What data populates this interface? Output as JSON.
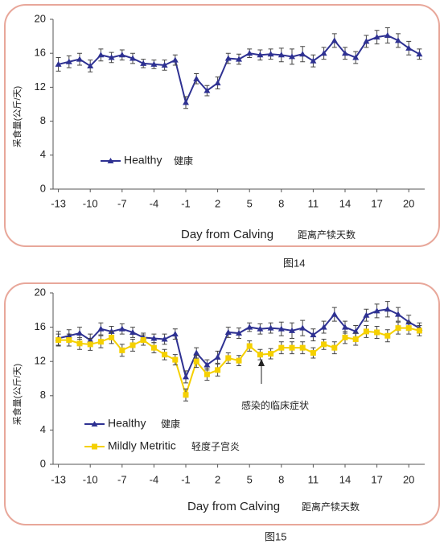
{
  "chart_data": [
    {
      "type": "line",
      "x_label": "Day from Calving",
      "x_label_zh": "距离产犊天数",
      "y_label": "采食量(公斤/天)",
      "x": [
        -13,
        -12,
        -11,
        -10,
        -9,
        -8,
        -7,
        -6,
        -5,
        -4,
        -3,
        -2,
        -1,
        0,
        1,
        2,
        3,
        4,
        5,
        6,
        7,
        8,
        9,
        10,
        11,
        12,
        13,
        14,
        15,
        16,
        17,
        18,
        19,
        20,
        21
      ],
      "xlim": [
        -13.5,
        21.5
      ],
      "xticks": [
        -13,
        -10,
        -7,
        -4,
        -1,
        2,
        5,
        8,
        11,
        14,
        17,
        20
      ],
      "ylim": [
        0,
        20
      ],
      "yticks": [
        0,
        4,
        8,
        12,
        16,
        20
      ],
      "series": [
        {
          "name": "Healthy",
          "name_zh": "健康",
          "color": "#2e3192",
          "marker": "triangle",
          "values": [
            14.7,
            15.0,
            15.3,
            14.5,
            15.8,
            15.5,
            15.8,
            15.4,
            14.8,
            14.7,
            14.6,
            15.2,
            10.2,
            13.0,
            11.6,
            12.5,
            15.4,
            15.3,
            16.0,
            15.8,
            15.9,
            15.8,
            15.6,
            15.9,
            15.1,
            16.0,
            17.5,
            16.0,
            15.5,
            17.4,
            17.9,
            18.1,
            17.5,
            16.6,
            15.9
          ],
          "errors": [
            0.8,
            0.7,
            0.7,
            0.7,
            0.7,
            0.6,
            0.6,
            0.6,
            0.5,
            0.5,
            0.6,
            0.6,
            0.7,
            0.6,
            0.6,
            0.7,
            0.6,
            0.6,
            0.5,
            0.6,
            0.6,
            0.8,
            0.9,
            0.9,
            0.7,
            0.7,
            0.8,
            0.7,
            0.7,
            0.7,
            0.8,
            0.9,
            0.8,
            0.8,
            0.6
          ]
        }
      ]
    },
    {
      "type": "line",
      "x_label": "Day from Calving",
      "x_label_zh": "距离产犊天数",
      "y_label": "采食量(公斤/天)",
      "annotation": "感染的临床症状",
      "x": [
        -13,
        -12,
        -11,
        -10,
        -9,
        -8,
        -7,
        -6,
        -5,
        -4,
        -3,
        -2,
        -1,
        0,
        1,
        2,
        3,
        4,
        5,
        6,
        7,
        8,
        9,
        10,
        11,
        12,
        13,
        14,
        15,
        16,
        17,
        18,
        19,
        20,
        21
      ],
      "xlim": [
        -13.5,
        21.5
      ],
      "xticks": [
        -13,
        -10,
        -7,
        -4,
        -1,
        2,
        5,
        8,
        11,
        14,
        17,
        20
      ],
      "ylim": [
        0,
        20
      ],
      "yticks": [
        0,
        4,
        8,
        12,
        16,
        20
      ],
      "series": [
        {
          "name": "Healthy",
          "name_zh": "健康",
          "color": "#2e3192",
          "marker": "triangle",
          "values": [
            14.7,
            15.0,
            15.3,
            14.5,
            15.8,
            15.5,
            15.8,
            15.4,
            14.8,
            14.7,
            14.6,
            15.2,
            10.2,
            13.0,
            11.6,
            12.5,
            15.4,
            15.3,
            16.0,
            15.8,
            15.9,
            15.8,
            15.6,
            15.9,
            15.1,
            16.0,
            17.5,
            16.0,
            15.5,
            17.4,
            17.9,
            18.1,
            17.5,
            16.6,
            15.9
          ],
          "errors": [
            0.8,
            0.7,
            0.7,
            0.7,
            0.7,
            0.6,
            0.6,
            0.6,
            0.5,
            0.5,
            0.6,
            0.6,
            0.7,
            0.6,
            0.6,
            0.7,
            0.6,
            0.6,
            0.5,
            0.6,
            0.6,
            0.8,
            0.9,
            0.9,
            0.7,
            0.7,
            0.8,
            0.7,
            0.7,
            0.7,
            0.8,
            0.9,
            0.8,
            0.8,
            0.6
          ]
        },
        {
          "name": "Mildly Metritic",
          "name_zh": "轻度子宫炎",
          "color": "#f5d000",
          "marker": "square",
          "values": [
            14.5,
            14.5,
            14.1,
            14.0,
            14.3,
            14.8,
            13.3,
            13.9,
            14.5,
            13.6,
            12.8,
            12.2,
            8.1,
            12.0,
            10.5,
            11.0,
            12.4,
            12.1,
            13.8,
            12.8,
            12.9,
            13.6,
            13.6,
            13.6,
            13.0,
            14.0,
            13.6,
            14.8,
            14.6,
            15.5,
            15.4,
            15.0,
            15.9,
            15.9,
            15.6
          ],
          "errors": [
            0.7,
            0.7,
            0.7,
            0.7,
            0.7,
            0.7,
            0.7,
            0.7,
            0.6,
            0.6,
            0.6,
            0.6,
            0.7,
            0.7,
            0.7,
            0.7,
            0.6,
            0.6,
            0.6,
            0.6,
            0.6,
            0.7,
            0.7,
            0.7,
            0.6,
            0.6,
            0.7,
            0.7,
            0.7,
            0.7,
            0.7,
            0.7,
            0.7,
            0.7,
            0.6
          ]
        }
      ]
    }
  ],
  "captions": [
    "图14",
    "图15"
  ]
}
